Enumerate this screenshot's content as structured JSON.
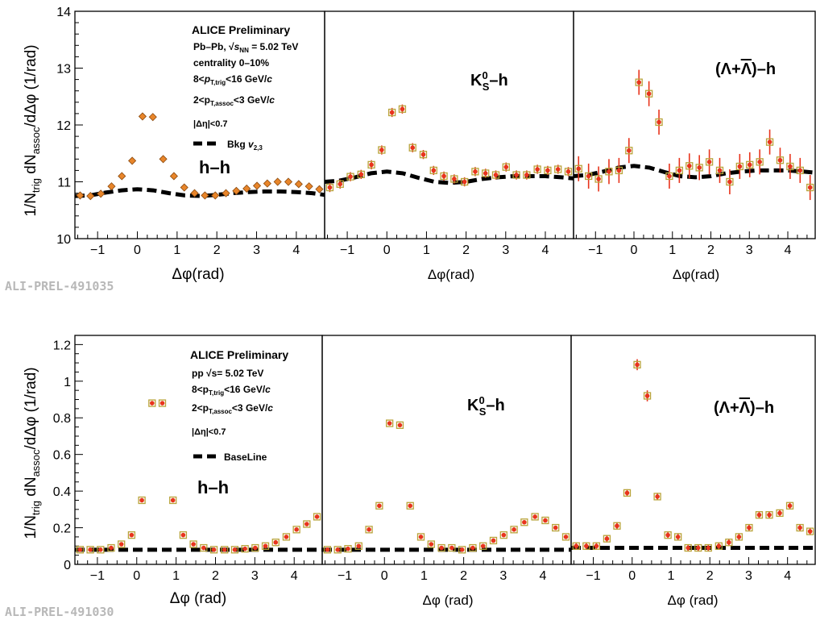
{
  "figure": {
    "ylabel": "1/N_trig dN_assoc/dΔφ (1/rad)"
  },
  "colors": {
    "marker_fill": "#e8341c",
    "marker_edge": "#b9a33a",
    "error_bar": "#e8341c",
    "orange_fill": "#e8852a",
    "orange_edge": "#8a4a10",
    "baseline": "#000000",
    "prelim_tag": "#b8b8b8"
  },
  "rows": [
    {
      "prelim_tag": "ALI-PREL-491035",
      "ylim": [
        10,
        14
      ],
      "yticks": [
        10,
        11,
        12,
        13,
        14
      ],
      "legend": {
        "title": "ALICE Preliminary",
        "system": "Pb–Pb, √s_NN = 5.02 TeV",
        "centrality": "centrality 0–10%",
        "trig": "8<p_T,trig<16 GeV/c",
        "assoc": "2<p_T,assoc<3 GeV/c",
        "eta": "|Δη|<0.7",
        "bkg": "Bkg v_2,3"
      },
      "panels": [
        {
          "label": "h–h",
          "xlabel": "Δφ(rad)"
        },
        {
          "label": "K0S–h",
          "xlabel": "Δφ(rad)"
        },
        {
          "label": "(Λ+Λ̄)–h",
          "xlabel": "Δφ(rad)"
        }
      ]
    },
    {
      "prelim_tag": "ALI-PREL-491030",
      "ylim": [
        0,
        1.25
      ],
      "yticks": [
        0,
        0.2,
        0.4,
        0.6,
        0.8,
        1,
        1.2
      ],
      "legend": {
        "title": "ALICE Preliminary",
        "system": "pp √s= 5.02 TeV",
        "trig": "8<p_T,trig<16 GeV/c",
        "assoc": "2<p_T,assoc<3 GeV/c",
        "eta": "|Δη|<0.7",
        "bkg": "BaseLine"
      },
      "panels": [
        {
          "label": "h–h",
          "xlabel": "Δφ (rad)"
        },
        {
          "label": "K0S–h",
          "xlabel": "Δφ (rad)"
        },
        {
          "label": "(Λ+Λ̄)–h",
          "xlabel": "Δφ (rad)"
        }
      ]
    }
  ],
  "chart_data": [
    {
      "type": "scatter",
      "title": "",
      "panel": "Pb–Pb h–h",
      "xlabel": "Δφ(rad)",
      "ylabel": "1/N_trig dN_assoc/dΔφ (1/rad)",
      "xlim": [
        -1.571,
        4.712
      ],
      "ylim": [
        10,
        14
      ],
      "xticks": [
        -1,
        0,
        1,
        2,
        3,
        4
      ],
      "grid": false,
      "style": "diamond",
      "x": [
        -1.44,
        -1.18,
        -0.92,
        -0.65,
        -0.39,
        -0.13,
        0.13,
        0.39,
        0.65,
        0.92,
        1.18,
        1.44,
        1.7,
        1.96,
        2.23,
        2.49,
        2.75,
        3.01,
        3.27,
        3.53,
        3.8,
        4.06,
        4.32,
        4.58
      ],
      "y": [
        10.76,
        10.75,
        10.79,
        10.92,
        11.1,
        11.37,
        12.15,
        12.14,
        11.4,
        11.1,
        10.9,
        10.8,
        10.76,
        10.76,
        10.8,
        10.84,
        10.88,
        10.93,
        10.97,
        11.0,
        11.0,
        10.96,
        10.92,
        10.87
      ],
      "yerr": [
        0.02,
        0.02,
        0.02,
        0.02,
        0.02,
        0.02,
        0.02,
        0.02,
        0.02,
        0.02,
        0.02,
        0.02,
        0.02,
        0.02,
        0.02,
        0.02,
        0.02,
        0.02,
        0.02,
        0.02,
        0.02,
        0.02,
        0.02,
        0.02
      ],
      "baseline_name": "Bkg v_2,3",
      "baseline_x": [
        -1.57,
        -1.2,
        -0.8,
        -0.4,
        0,
        0.4,
        0.8,
        1.2,
        1.6,
        2.0,
        2.4,
        2.8,
        3.2,
        3.6,
        4.0,
        4.4,
        4.71
      ],
      "baseline_y": [
        10.75,
        10.76,
        10.81,
        10.85,
        10.87,
        10.85,
        10.8,
        10.76,
        10.75,
        10.77,
        10.8,
        10.82,
        10.83,
        10.83,
        10.82,
        10.8,
        10.77
      ]
    },
    {
      "type": "scatter",
      "title": "",
      "panel": "Pb–Pb K0S–h",
      "xlabel": "Δφ(rad)",
      "xlim": [
        -1.571,
        4.712
      ],
      "ylim": [
        10,
        14
      ],
      "xticks": [
        -1,
        0,
        1,
        2,
        3,
        4
      ],
      "grid": false,
      "style": "square",
      "x": [
        -1.44,
        -1.18,
        -0.92,
        -0.65,
        -0.39,
        -0.13,
        0.13,
        0.39,
        0.65,
        0.92,
        1.18,
        1.44,
        1.7,
        1.96,
        2.23,
        2.49,
        2.75,
        3.01,
        3.27,
        3.53,
        3.8,
        4.06,
        4.32,
        4.58
      ],
      "y": [
        10.9,
        10.96,
        11.09,
        11.13,
        11.3,
        11.56,
        12.22,
        12.28,
        11.6,
        11.48,
        11.2,
        11.1,
        11.05,
        11.0,
        11.18,
        11.15,
        11.12,
        11.26,
        11.12,
        11.12,
        11.22,
        11.2,
        11.22,
        11.18
      ],
      "yerr": [
        0.08,
        0.08,
        0.08,
        0.08,
        0.08,
        0.08,
        0.08,
        0.08,
        0.08,
        0.08,
        0.08,
        0.08,
        0.08,
        0.08,
        0.08,
        0.08,
        0.08,
        0.08,
        0.08,
        0.08,
        0.08,
        0.08,
        0.08,
        0.08
      ],
      "baseline_x": [
        -1.57,
        -1.2,
        -0.8,
        -0.4,
        0,
        0.4,
        0.8,
        1.2,
        1.6,
        2.0,
        2.4,
        2.8,
        3.2,
        3.6,
        4.0,
        4.4,
        4.71
      ],
      "baseline_y": [
        11.0,
        11.02,
        11.08,
        11.15,
        11.18,
        11.15,
        11.07,
        11.0,
        10.98,
        11.0,
        11.05,
        11.08,
        11.1,
        11.1,
        11.1,
        11.08,
        11.06
      ]
    },
    {
      "type": "scatter",
      "title": "",
      "panel": "Pb–Pb (Λ+Λ̄)–h",
      "xlabel": "Δφ(rad)",
      "xlim": [
        -1.571,
        4.712
      ],
      "ylim": [
        10,
        14
      ],
      "xticks": [
        -1,
        0,
        1,
        2,
        3,
        4
      ],
      "grid": false,
      "style": "square",
      "x": [
        -1.44,
        -1.18,
        -0.92,
        -0.65,
        -0.39,
        -0.13,
        0.13,
        0.39,
        0.65,
        0.92,
        1.18,
        1.44,
        1.7,
        1.96,
        2.23,
        2.49,
        2.75,
        3.01,
        3.27,
        3.53,
        3.8,
        4.06,
        4.32,
        4.58
      ],
      "y": [
        11.23,
        11.1,
        11.05,
        11.18,
        11.2,
        11.55,
        12.75,
        12.55,
        12.05,
        11.1,
        11.2,
        11.28,
        11.25,
        11.35,
        11.2,
        11.0,
        11.27,
        11.3,
        11.35,
        11.7,
        11.38,
        11.27,
        11.2,
        10.9
      ],
      "yerr": [
        0.22,
        0.22,
        0.22,
        0.22,
        0.22,
        0.22,
        0.22,
        0.22,
        0.22,
        0.22,
        0.22,
        0.22,
        0.22,
        0.22,
        0.22,
        0.22,
        0.22,
        0.22,
        0.22,
        0.22,
        0.22,
        0.22,
        0.22,
        0.22
      ],
      "baseline_x": [
        -1.57,
        -1.2,
        -0.8,
        -0.4,
        0,
        0.4,
        0.8,
        1.2,
        1.6,
        2.0,
        2.4,
        2.8,
        3.2,
        3.6,
        4.0,
        4.4,
        4.71
      ],
      "baseline_y": [
        11.1,
        11.12,
        11.18,
        11.25,
        11.28,
        11.25,
        11.17,
        11.1,
        11.08,
        11.1,
        11.15,
        11.18,
        11.2,
        11.2,
        11.2,
        11.18,
        11.16
      ]
    },
    {
      "type": "scatter",
      "title": "",
      "panel": "pp h–h",
      "xlabel": "Δφ (rad)",
      "ylabel": "1/N_trig dN_assoc/dΔφ (1/rad)",
      "xlim": [
        -1.571,
        4.712
      ],
      "ylim": [
        0,
        1.25
      ],
      "xticks": [
        -1,
        0,
        1,
        2,
        3,
        4
      ],
      "grid": false,
      "style": "square",
      "x": [
        -1.44,
        -1.18,
        -0.92,
        -0.65,
        -0.39,
        -0.13,
        0.13,
        0.39,
        0.65,
        0.92,
        1.18,
        1.44,
        1.7,
        1.96,
        2.23,
        2.49,
        2.75,
        3.01,
        3.27,
        3.53,
        3.8,
        4.06,
        4.32,
        4.58
      ],
      "y": [
        0.08,
        0.08,
        0.08,
        0.09,
        0.11,
        0.16,
        0.35,
        0.88,
        0.88,
        0.35,
        0.16,
        0.11,
        0.09,
        0.08,
        0.08,
        0.08,
        0.085,
        0.09,
        0.1,
        0.12,
        0.15,
        0.19,
        0.22,
        0.26
      ],
      "yerr": [
        0.005,
        0.005,
        0.005,
        0.005,
        0.005,
        0.005,
        0.005,
        0.005,
        0.005,
        0.005,
        0.005,
        0.005,
        0.005,
        0.005,
        0.005,
        0.005,
        0.005,
        0.005,
        0.005,
        0.005,
        0.005,
        0.005,
        0.005,
        0.005
      ],
      "baseline_name": "BaseLine",
      "baseline_value": 0.08
    },
    {
      "type": "scatter",
      "title": "",
      "panel": "pp K0S–h",
      "xlabel": "Δφ (rad)",
      "xlim": [
        -1.571,
        4.712
      ],
      "ylim": [
        0,
        1.25
      ],
      "xticks": [
        -1,
        0,
        1,
        2,
        3,
        4
      ],
      "grid": false,
      "style": "square",
      "x": [
        -1.44,
        -1.18,
        -0.92,
        -0.65,
        -0.39,
        -0.13,
        0.13,
        0.39,
        0.65,
        0.92,
        1.18,
        1.44,
        1.7,
        1.96,
        2.23,
        2.49,
        2.75,
        3.01,
        3.27,
        3.53,
        3.8,
        4.06,
        4.32,
        4.58
      ],
      "y": [
        0.08,
        0.08,
        0.085,
        0.1,
        0.19,
        0.32,
        0.77,
        0.76,
        0.32,
        0.15,
        0.11,
        0.09,
        0.09,
        0.08,
        0.09,
        0.1,
        0.13,
        0.16,
        0.19,
        0.23,
        0.26,
        0.24,
        0.2,
        0.15
      ],
      "yerr": [
        0.008,
        0.008,
        0.008,
        0.008,
        0.008,
        0.008,
        0.008,
        0.008,
        0.008,
        0.008,
        0.008,
        0.008,
        0.008,
        0.008,
        0.008,
        0.008,
        0.008,
        0.008,
        0.008,
        0.008,
        0.008,
        0.008,
        0.008,
        0.008
      ],
      "baseline_value": 0.08
    },
    {
      "type": "scatter",
      "title": "",
      "panel": "pp (Λ+Λ̄)–h",
      "xlabel": "Δφ (rad)",
      "xlim": [
        -1.571,
        4.712
      ],
      "ylim": [
        0,
        1.25
      ],
      "xticks": [
        -1,
        0,
        1,
        2,
        3,
        4
      ],
      "grid": false,
      "style": "square",
      "x": [
        -1.44,
        -1.18,
        -0.92,
        -0.65,
        -0.39,
        -0.13,
        0.13,
        0.39,
        0.65,
        0.92,
        1.18,
        1.44,
        1.7,
        1.96,
        2.23,
        2.49,
        2.75,
        3.01,
        3.27,
        3.53,
        3.8,
        4.06,
        4.32,
        4.58
      ],
      "y": [
        0.1,
        0.1,
        0.1,
        0.14,
        0.21,
        0.39,
        1.09,
        0.92,
        0.37,
        0.16,
        0.15,
        0.09,
        0.09,
        0.09,
        0.1,
        0.12,
        0.15,
        0.2,
        0.27,
        0.27,
        0.28,
        0.32,
        0.2,
        0.18
      ],
      "yerr": [
        0.02,
        0.02,
        0.02,
        0.02,
        0.02,
        0.02,
        0.03,
        0.03,
        0.02,
        0.02,
        0.02,
        0.02,
        0.02,
        0.02,
        0.02,
        0.02,
        0.02,
        0.02,
        0.02,
        0.02,
        0.02,
        0.02,
        0.02,
        0.02
      ],
      "baseline_value": 0.09
    }
  ]
}
